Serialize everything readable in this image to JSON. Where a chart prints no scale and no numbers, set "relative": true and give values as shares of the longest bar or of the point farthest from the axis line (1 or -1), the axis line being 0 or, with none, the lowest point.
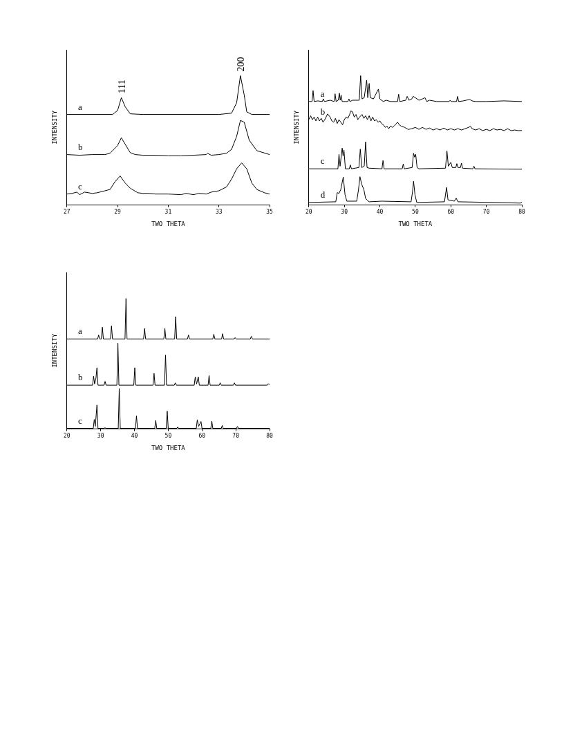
{
  "chart_data": [
    {
      "type": "line",
      "xlabel": "TWO THETA",
      "ylabel": "INTENSITY",
      "relative": true,
      "xlim": [
        27,
        35
      ],
      "xticks": [
        27,
        29,
        31,
        33,
        35
      ],
      "tick_labels": "x",
      "grid": false,
      "legend": false,
      "marker": "none",
      "line_style": "solid",
      "annotations": [
        {
          "text": "111",
          "x": 29.15,
          "y": 0.83
        },
        {
          "text": "200",
          "x": 33.85,
          "y": 1.0
        }
      ],
      "series": [
        {
          "name": "a",
          "color": "#000000",
          "x": [
            27,
            28.8,
            29.0,
            29.15,
            29.3,
            29.5,
            30,
            33,
            33.5,
            33.7,
            33.85,
            34.0,
            34.1,
            34.3,
            35
          ],
          "values": [
            0.7,
            0.7,
            0.73,
            0.83,
            0.76,
            0.705,
            0.7,
            0.7,
            0.71,
            0.79,
            1.0,
            0.85,
            0.72,
            0.7,
            0.7
          ]
        },
        {
          "name": "b",
          "color": "#000000",
          "x": [
            27,
            27.5,
            28,
            28.5,
            28.7,
            29.0,
            29.15,
            29.3,
            29.5,
            29.7,
            30,
            30.5,
            31,
            31.5,
            32,
            32.5,
            32.55,
            32.7,
            33,
            33.3,
            33.5,
            33.7,
            33.85,
            34.0,
            34.2,
            34.5,
            35
          ],
          "values": [
            0.39,
            0.385,
            0.39,
            0.39,
            0.4,
            0.46,
            0.52,
            0.47,
            0.405,
            0.39,
            0.385,
            0.385,
            0.38,
            0.38,
            0.385,
            0.39,
            0.4,
            0.385,
            0.39,
            0.4,
            0.43,
            0.53,
            0.654,
            0.64,
            0.5,
            0.42,
            0.39
          ]
        },
        {
          "name": "c",
          "color": "#000000",
          "x": [
            27,
            27.2,
            27.4,
            27.5,
            27.7,
            28,
            28.2,
            28.5,
            28.7,
            28.9,
            29.1,
            29.3,
            29.5,
            29.8,
            30,
            30.2,
            30.5,
            31,
            31.5,
            31.7,
            32,
            32.2,
            32.5,
            32.7,
            33,
            33.3,
            33.5,
            33.7,
            33.9,
            34.1,
            34.3,
            34.5,
            34.8,
            35
          ],
          "values": [
            0.085,
            0.09,
            0.1,
            0.08,
            0.1,
            0.09,
            0.095,
            0.11,
            0.12,
            0.18,
            0.225,
            0.17,
            0.13,
            0.095,
            0.09,
            0.09,
            0.085,
            0.085,
            0.08,
            0.09,
            0.08,
            0.09,
            0.085,
            0.1,
            0.11,
            0.14,
            0.2,
            0.28,
            0.326,
            0.28,
            0.17,
            0.12,
            0.095,
            0.085
          ]
        }
      ]
    },
    {
      "type": "line",
      "xlabel": "TWO THETA",
      "ylabel": "INTENSITY",
      "relative": true,
      "xlim": [
        20,
        80
      ],
      "xticks": [
        20,
        30,
        40,
        50,
        60,
        70,
        80
      ],
      "tick_labels": "x",
      "grid": false,
      "legend": false,
      "marker": "none",
      "line_style": "solid",
      "series": [
        {
          "name": "a",
          "color": "#000000",
          "x": [
            20,
            20.9,
            21.2,
            21.5,
            22.5,
            23.8,
            24.1,
            24.4,
            26,
            27.1,
            27.4,
            27.7,
            28.3,
            28.6,
            28.85,
            29.1,
            29.4,
            31,
            31.3,
            31.6,
            32.3,
            34.2,
            34.6,
            35,
            35.6,
            36.3,
            36.6,
            37.0,
            37.3,
            38.2,
            39.6,
            40.0,
            41,
            41.8,
            43,
            45,
            45.3,
            45.6,
            47.3,
            47.7,
            48.2,
            49,
            49.4,
            50,
            51,
            52,
            52.7,
            53.2,
            54,
            56,
            59.5,
            59.8,
            60.1,
            61.6,
            61.9,
            62.2,
            63.5,
            65.3,
            66,
            67,
            70,
            75,
            80
          ],
          "values": [
            0.8,
            0.8,
            0.885,
            0.8,
            0.805,
            0.8,
            0.82,
            0.8,
            0.81,
            0.8,
            0.86,
            0.8,
            0.81,
            0.865,
            0.81,
            0.85,
            0.8,
            0.8,
            0.82,
            0.8,
            0.81,
            0.81,
            1.0,
            0.82,
            0.83,
            0.965,
            0.83,
            0.94,
            0.83,
            0.82,
            0.896,
            0.82,
            0.8,
            0.81,
            0.8,
            0.8,
            0.856,
            0.8,
            0.81,
            0.84,
            0.81,
            0.82,
            0.84,
            0.83,
            0.81,
            0.82,
            0.83,
            0.8,
            0.81,
            0.8,
            0.8,
            0.81,
            0.8,
            0.8,
            0.84,
            0.8,
            0.805,
            0.816,
            0.805,
            0.8,
            0.8,
            0.805,
            0.8
          ]
        },
        {
          "name": "b",
          "color": "#000000",
          "x": [
            20,
            20.5,
            21,
            21.5,
            22,
            22.5,
            23,
            23.5,
            24,
            24.5,
            25.3,
            26,
            26.5,
            27,
            27.5,
            28,
            28.5,
            29,
            29.5,
            30,
            30.5,
            31,
            31.5,
            31.8,
            32.3,
            32.8,
            33.3,
            33.8,
            34.3,
            35,
            35.5,
            36,
            36.5,
            37,
            37.5,
            38,
            38.5,
            39,
            39.5,
            40,
            40.5,
            41,
            41.5,
            42,
            42.5,
            43,
            43.5,
            44,
            45,
            45.5,
            46,
            47,
            48,
            49,
            50,
            51,
            52,
            53,
            54,
            55,
            56,
            57,
            58,
            59,
            60,
            61,
            62,
            63,
            64,
            65,
            65.5,
            66,
            67,
            68,
            69,
            70,
            71,
            72,
            73,
            74,
            75,
            76,
            77,
            78,
            79,
            80
          ],
          "values": [
            0.66,
            0.69,
            0.66,
            0.68,
            0.65,
            0.68,
            0.65,
            0.67,
            0.64,
            0.66,
            0.704,
            0.68,
            0.65,
            0.64,
            0.67,
            0.63,
            0.66,
            0.64,
            0.62,
            0.66,
            0.68,
            0.67,
            0.7,
            0.728,
            0.72,
            0.68,
            0.7,
            0.66,
            0.68,
            0.7,
            0.67,
            0.69,
            0.66,
            0.69,
            0.65,
            0.68,
            0.65,
            0.66,
            0.64,
            0.65,
            0.63,
            0.62,
            0.6,
            0.61,
            0.59,
            0.61,
            0.6,
            0.61,
            0.64,
            0.62,
            0.61,
            0.6,
            0.584,
            0.59,
            0.6,
            0.585,
            0.6,
            0.585,
            0.595,
            0.58,
            0.59,
            0.58,
            0.595,
            0.58,
            0.59,
            0.58,
            0.59,
            0.58,
            0.59,
            0.6,
            0.61,
            0.59,
            0.58,
            0.59,
            0.575,
            0.585,
            0.575,
            0.59,
            0.58,
            0.585,
            0.575,
            0.59,
            0.575,
            0.58,
            0.575,
            0.576
          ]
        },
        {
          "name": "c",
          "color": "#000000",
          "x": [
            20,
            28.2,
            28.5,
            28.8,
            29.4,
            29.65,
            29.9,
            30.3,
            31.4,
            31.7,
            32,
            34.1,
            34.5,
            34.9,
            35.6,
            36.0,
            36.4,
            37,
            40.6,
            40.9,
            41.2,
            46.3,
            46.6,
            46.9,
            49.1,
            49.5,
            49.8,
            50.1,
            50.5,
            51,
            58.5,
            58.9,
            59.3,
            60.0,
            60.4,
            61.4,
            61.7,
            62,
            62.7,
            63.0,
            63.3,
            66.2,
            66.5,
            66.8,
            80
          ],
          "values": [
            0.28,
            0.28,
            0.392,
            0.3,
            0.44,
            0.38,
            0.424,
            0.28,
            0.28,
            0.31,
            0.28,
            0.29,
            0.432,
            0.29,
            0.3,
            0.488,
            0.29,
            0.285,
            0.28,
            0.344,
            0.28,
            0.28,
            0.317,
            0.28,
            0.29,
            0.4,
            0.37,
            0.392,
            0.29,
            0.28,
            0.285,
            0.42,
            0.3,
            0.33,
            0.29,
            0.29,
            0.32,
            0.29,
            0.29,
            0.323,
            0.285,
            0.28,
            0.3,
            0.28,
            0.277
          ]
        },
        {
          "name": "d",
          "color": "#000000",
          "x": [
            20,
            27.6,
            28.0,
            28.5,
            29.0,
            29.7,
            30.2,
            30.7,
            33.5,
            34.0,
            34.4,
            34.9,
            35.5,
            36.0,
            37,
            40.5,
            48.8,
            49.2,
            49.5,
            49.9,
            50.4,
            58.2,
            58.8,
            59.2,
            61.0,
            61.5,
            62.0,
            72,
            79.6,
            80
          ],
          "values": [
            0.02,
            0.025,
            0.096,
            0.09,
            0.12,
            0.216,
            0.08,
            0.03,
            0.03,
            0.12,
            0.219,
            0.16,
            0.12,
            0.05,
            0.025,
            0.03,
            0.025,
            0.1,
            0.184,
            0.08,
            0.02,
            0.025,
            0.136,
            0.04,
            0.03,
            0.053,
            0.025,
            0.02,
            0.015,
            0.024
          ]
        }
      ]
    },
    {
      "type": "line",
      "xlabel": "TWO THETA",
      "ylabel": "INTENSITY",
      "relative": true,
      "xlim": [
        20,
        80
      ],
      "xticks": [
        20,
        30,
        40,
        50,
        60,
        70,
        80
      ],
      "tick_labels": "x",
      "grid": false,
      "legend": false,
      "marker": "none",
      "line_style": "solid",
      "series": [
        {
          "name": "a",
          "color": "#000000",
          "x": [
            20,
            29.1,
            29.4,
            29.7,
            30.2,
            30.5,
            30.8,
            32.9,
            33.2,
            33.5,
            37.2,
            37.5,
            37.8,
            42.7,
            43.0,
            43.3,
            48.7,
            49.0,
            49.3,
            51.9,
            52.2,
            52.5,
            55.7,
            56,
            56.3,
            63.2,
            63.5,
            63.8,
            65.8,
            66.1,
            66.4,
            69.5,
            69.8,
            70.1,
            74.3,
            74.6,
            74.9,
            80
          ],
          "values": [
            0.69,
            0.69,
            0.72,
            0.69,
            0.69,
            0.78,
            0.69,
            0.69,
            0.79,
            0.69,
            0.69,
            1.0,
            0.69,
            0.69,
            0.77,
            0.69,
            0.69,
            0.77,
            0.69,
            0.69,
            0.86,
            0.69,
            0.69,
            0.72,
            0.69,
            0.69,
            0.726,
            0.69,
            0.69,
            0.73,
            0.69,
            0.69,
            0.7,
            0.69,
            0.69,
            0.71,
            0.69,
            0.69
          ]
        },
        {
          "name": "b",
          "color": "#000000",
          "x": [
            20,
            27.6,
            27.9,
            28.2,
            28.6,
            28.9,
            29.2,
            31.0,
            31.3,
            31.6,
            34.8,
            35.1,
            35.4,
            39.8,
            40.1,
            40.4,
            45.5,
            45.8,
            46.1,
            48.9,
            49.2,
            49.5,
            51.8,
            52.1,
            52.4,
            57.7,
            58.0,
            58.4,
            58.9,
            59.2,
            61.8,
            62.1,
            62.4,
            65.1,
            65.4,
            65.7,
            69.3,
            69.6,
            69.9,
            79.3,
            79.6,
            80
          ],
          "values": [
            0.336,
            0.336,
            0.404,
            0.345,
            0.39,
            0.47,
            0.336,
            0.336,
            0.365,
            0.336,
            0.336,
            0.658,
            0.336,
            0.336,
            0.47,
            0.336,
            0.336,
            0.426,
            0.336,
            0.336,
            0.567,
            0.336,
            0.336,
            0.354,
            0.336,
            0.336,
            0.4,
            0.345,
            0.4,
            0.336,
            0.336,
            0.41,
            0.336,
            0.336,
            0.354,
            0.336,
            0.336,
            0.354,
            0.336,
            0.336,
            0.347,
            0.34
          ]
        },
        {
          "name": "c",
          "color": "#000000",
          "x": [
            20,
            27.8,
            28.1,
            28.4,
            28.9,
            29.2,
            31.0,
            31.3,
            31.6,
            35.2,
            35.5,
            35.8,
            40.3,
            40.6,
            40.9,
            46.0,
            46.3,
            46.6,
            49.4,
            49.7,
            50.0,
            52.5,
            52.8,
            53.1,
            58.3,
            58.6,
            59.0,
            59.7,
            60.0,
            62.6,
            62.9,
            63.2,
            65.7,
            66.0,
            66.3,
            70.2,
            70.5,
            70.8,
            80
          ],
          "values": [
            0.005,
            0.005,
            0.073,
            0.02,
            0.184,
            0.005,
            0.005,
            0.01,
            0.005,
            0.005,
            0.31,
            0.005,
            0.005,
            0.1,
            0.005,
            0.005,
            0.065,
            0.005,
            0.005,
            0.137,
            0.005,
            0.005,
            0.015,
            0.005,
            0.005,
            0.07,
            0.02,
            0.058,
            0.005,
            0.005,
            0.061,
            0.005,
            0.005,
            0.027,
            0.005,
            0.005,
            0.02,
            0.005,
            0.005
          ]
        }
      ]
    }
  ]
}
